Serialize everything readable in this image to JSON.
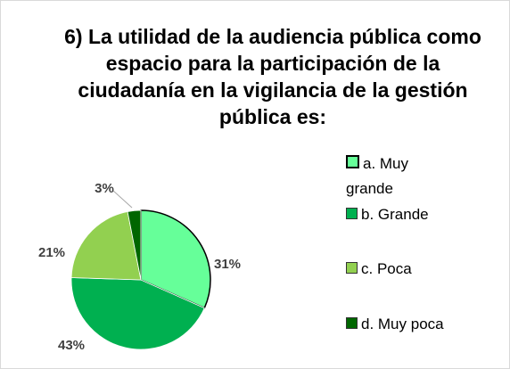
{
  "chart_data": {
    "type": "pie",
    "title": "6) La utilidad de la audiencia pública como espacio para la participación de la ciudadanía en la vigilancia de la gestión pública es:",
    "categories": [
      "a. Muy grande",
      "b. Grande",
      "c. Poca",
      "d. Muy poca"
    ],
    "values": [
      31,
      43,
      21,
      3
    ],
    "value_labels": [
      "31%",
      "43%",
      "21%",
      "3%"
    ],
    "colors": [
      "#66ff99",
      "#00b050",
      "#92d050",
      "#006600"
    ],
    "legend": "right"
  }
}
